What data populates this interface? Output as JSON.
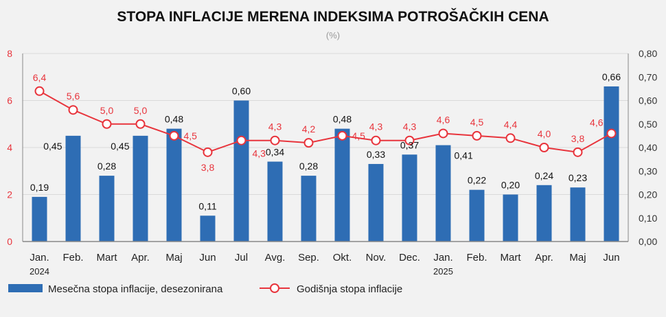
{
  "chart_data": {
    "type": "bar",
    "title": "STOPA INFLACIJE MERENA INDEKSIMA POTROŠAČKIH CENA",
    "subtitle": "(%)",
    "categories": [
      "Jan.",
      "Feb.",
      "Mart",
      "Apr.",
      "Maj",
      "Jun",
      "Jul",
      "Avg.",
      "Sep.",
      "Okt.",
      "Nov.",
      "Dec.",
      "Jan.",
      "Feb.",
      "Mart",
      "Apr.",
      "Maj",
      "Jun"
    ],
    "year_labels": [
      {
        "category_index": 0,
        "text": "2024"
      },
      {
        "category_index": 12,
        "text": "2025"
      }
    ],
    "series": [
      {
        "name": "Mesečna stopa inflacije, desezonirana",
        "type": "bar",
        "axis": "right",
        "color": "#2e6db4",
        "values": [
          0.19,
          0.45,
          0.28,
          0.45,
          0.48,
          0.11,
          0.6,
          0.34,
          0.28,
          0.48,
          0.33,
          0.37,
          0.41,
          0.22,
          0.2,
          0.24,
          0.23,
          0.66
        ],
        "labels": [
          "0,19",
          "0,45",
          "0,28",
          "0,45",
          "0,48",
          "0,11",
          "0,60",
          "0,34",
          "0,28",
          "0,48",
          "0,33",
          "0,37",
          "0,41",
          "0,22",
          "0,20",
          "0,24",
          "0,23",
          "0,66"
        ]
      },
      {
        "name": "Godišnja stopa inflacije",
        "type": "line",
        "axis": "left",
        "color": "#e8343c",
        "values": [
          6.4,
          5.6,
          5.0,
          5.0,
          4.5,
          3.8,
          4.3,
          4.3,
          4.2,
          4.5,
          4.3,
          4.3,
          4.6,
          4.5,
          4.4,
          4.0,
          3.8,
          4.6
        ],
        "labels": [
          "6,4",
          "5,6",
          "5,0",
          "5,0",
          "4,5",
          "3,8",
          "4,3",
          "4,3",
          "4,2",
          "4,5",
          "4,3",
          "4,3",
          "4,6",
          "4,5",
          "4,4",
          "4,0",
          "3,8",
          "4,6"
        ]
      }
    ],
    "y_left": {
      "min": 0,
      "max": 8,
      "ticks": [
        "0",
        "2",
        "4",
        "6",
        "8"
      ],
      "color": "#e8343c"
    },
    "y_right": {
      "min": 0,
      "max": 0.8,
      "ticks": [
        "0,00",
        "0,10",
        "0,20",
        "0,30",
        "0,40",
        "0,50",
        "0,60",
        "0,70",
        "0,80"
      ]
    },
    "grid": "horizontal",
    "legend_position": "bottom-left"
  }
}
